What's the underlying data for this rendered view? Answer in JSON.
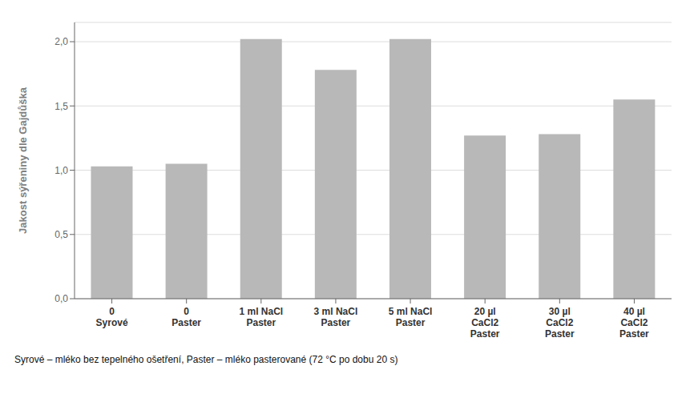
{
  "chart_data": {
    "type": "bar",
    "ylabel": "Jakost sýřeniny dle Gajdůška",
    "categories": [
      "0\nSyrové",
      "0\nPaster",
      "1 ml NaCl\nPaster",
      "3 ml NaCl\nPaster",
      "5 ml NaCl\nPaster",
      "20 µl\nCaCl2\nPaster",
      "30 µl\nCaCl2\nPaster",
      "40 µl\nCaCl2\nPaster"
    ],
    "values": [
      1.03,
      1.05,
      2.02,
      1.78,
      2.02,
      1.27,
      1.28,
      1.55
    ],
    "color": "#b8b8b8",
    "ylim": [
      0.0,
      2.15
    ],
    "yticks": [
      {
        "value": 0.0,
        "label": "0,0"
      },
      {
        "value": 0.5,
        "label": "0,5"
      },
      {
        "value": 1.0,
        "label": "1,0"
      },
      {
        "value": 1.5,
        "label": "1,5"
      },
      {
        "value": 2.0,
        "label": "2,0"
      }
    ],
    "grid": true,
    "annotations": [
      "Syrové – mléko bez tepelného ošetření, Paster – mléko pasterované (72 °C po dobu 20 s)"
    ]
  }
}
